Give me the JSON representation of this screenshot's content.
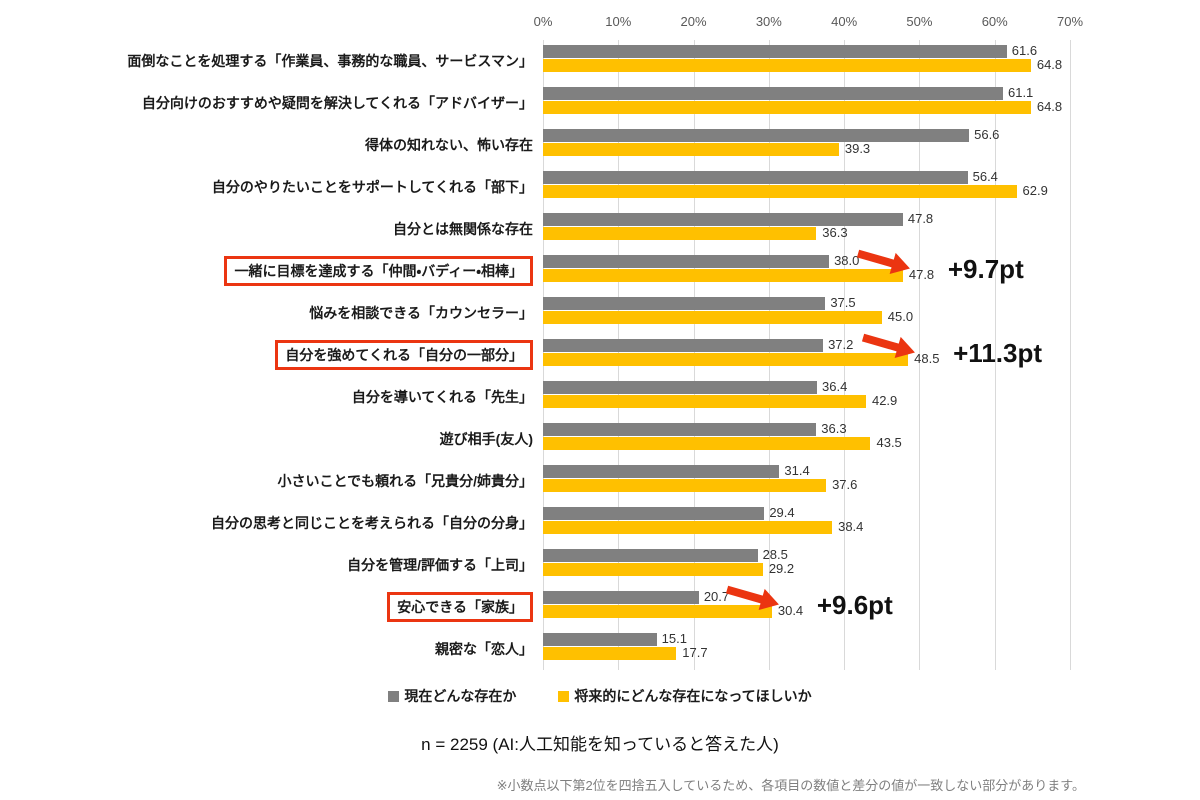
{
  "chart_data": {
    "type": "bar",
    "orientation": "horizontal",
    "title": "",
    "xlabel": "",
    "ylabel": "",
    "unit": "%",
    "axis": {
      "min": 0,
      "max": 70,
      "tick_step": 10,
      "ticks": [
        "0%",
        "10%",
        "20%",
        "30%",
        "40%",
        "50%",
        "60%",
        "70%"
      ],
      "grid": true,
      "axis_position": "top"
    },
    "legend_position": "bottom",
    "series_names": [
      "現在どんな存在か",
      "将来的にどんな存在になってほしいか"
    ],
    "colors": {
      "current": "#808080",
      "future": "#ffc000",
      "highlight_red": "#eb3511",
      "gridline": "#d9d9d9"
    },
    "rows": [
      {
        "label": "面倒なことを処理する「作業員、事務的な職員、サービスマン」",
        "current": 61.6,
        "future": 64.8,
        "boxed": false,
        "delta": ""
      },
      {
        "label": "自分向けのおすすめや疑問を解決してくれる「アドバイザー」",
        "current": 61.1,
        "future": 64.8,
        "boxed": false,
        "delta": ""
      },
      {
        "label": "得体の知れない、怖い存在",
        "current": 56.6,
        "future": 39.3,
        "boxed": false,
        "delta": ""
      },
      {
        "label": "自分のやりたいことをサポートしてくれる「部下」",
        "current": 56.4,
        "future": 62.9,
        "boxed": false,
        "delta": ""
      },
      {
        "label": "自分とは無関係な存在",
        "current": 47.8,
        "future": 36.3,
        "boxed": false,
        "delta": ""
      },
      {
        "label": "一緒に目標を達成する「仲間・バディー・相棒」",
        "current": 38.0,
        "future": 47.8,
        "boxed": true,
        "delta": "+9.7pt"
      },
      {
        "label": "悩みを相談できる「カウンセラー」",
        "current": 37.5,
        "future": 45.0,
        "boxed": false,
        "delta": ""
      },
      {
        "label": "自分を強めてくれる「自分の一部分」",
        "current": 37.2,
        "future": 48.5,
        "boxed": true,
        "delta": "+11.3pt"
      },
      {
        "label": "自分を導いてくれる「先生」",
        "current": 36.4,
        "future": 42.9,
        "boxed": false,
        "delta": ""
      },
      {
        "label": "遊び相手(友人)",
        "current": 36.3,
        "future": 43.5,
        "boxed": false,
        "delta": ""
      },
      {
        "label": "小さいことでも頼れる「兄貴分/姉貴分」",
        "current": 31.4,
        "future": 37.6,
        "boxed": false,
        "delta": ""
      },
      {
        "label": "自分の思考と同じことを考えられる「自分の分身」",
        "current": 29.4,
        "future": 38.4,
        "boxed": false,
        "delta": ""
      },
      {
        "label": "自分を管理/評価する「上司」",
        "current": 28.5,
        "future": 29.2,
        "boxed": false,
        "delta": ""
      },
      {
        "label": "安心できる「家族」",
        "current": 20.7,
        "future": 30.4,
        "boxed": true,
        "delta": "+9.6pt"
      },
      {
        "label": "親密な「恋人」",
        "current": 15.1,
        "future": 17.7,
        "boxed": false,
        "delta": ""
      }
    ]
  },
  "legend": {
    "current": "現在どんな存在か",
    "future": "将来的にどんな存在になってほしいか"
  },
  "notes": {
    "sample": "n = 2259 (AI:人工知能を知っていると答えた人)",
    "footnote": "※小数点以下第2位を四捨五入しているため、各項目の数値と差分の値が一致しない部分があります。"
  }
}
